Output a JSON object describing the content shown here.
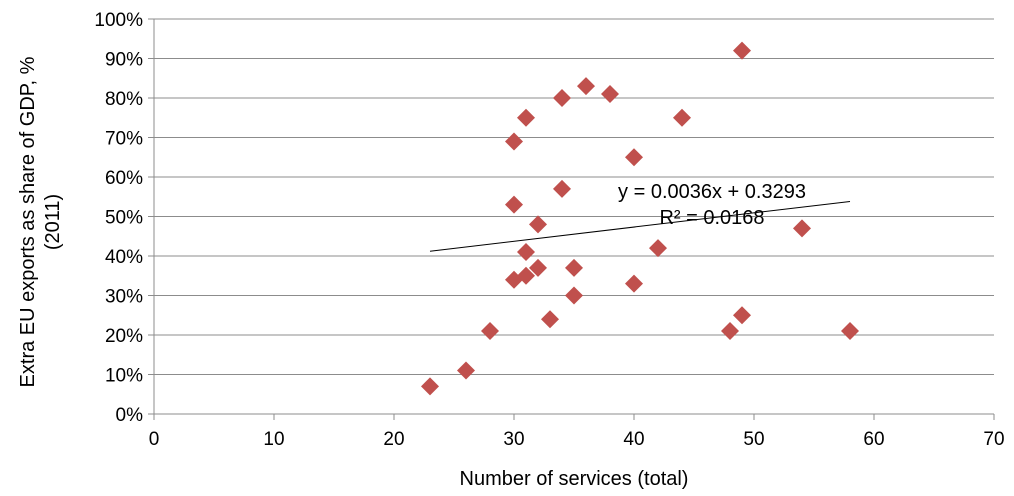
{
  "chart_data": {
    "type": "scatter",
    "xlabel": "Number  of services (total)",
    "ylabel_lines": [
      "Extra EU exports as share of GDP, %",
      "(2011)"
    ],
    "xlim": [
      0,
      70
    ],
    "ylim": [
      0,
      1
    ],
    "x_ticks": [
      0,
      10,
      20,
      30,
      40,
      50,
      60,
      70
    ],
    "x_tick_labels": [
      "0",
      "10",
      "20",
      "30",
      "40",
      "50",
      "60",
      "70"
    ],
    "y_ticks": [
      0,
      0.1,
      0.2,
      0.3,
      0.4,
      0.5,
      0.6,
      0.7,
      0.8,
      0.9,
      1.0
    ],
    "y_tick_labels": [
      "0%",
      "10%",
      "20%",
      "30%",
      "40%",
      "50%",
      "60%",
      "70%",
      "80%",
      "90%",
      "100%"
    ],
    "grid": "horizontal",
    "marker": "diamond",
    "marker_color": "#C0504D",
    "trendline_color": "#000000",
    "points": [
      {
        "x": 23,
        "y": 0.07
      },
      {
        "x": 26,
        "y": 0.11
      },
      {
        "x": 28,
        "y": 0.21
      },
      {
        "x": 30,
        "y": 0.34
      },
      {
        "x": 30,
        "y": 0.53
      },
      {
        "x": 30,
        "y": 0.69
      },
      {
        "x": 31,
        "y": 0.35
      },
      {
        "x": 31,
        "y": 0.41
      },
      {
        "x": 31,
        "y": 0.75
      },
      {
        "x": 32,
        "y": 0.37
      },
      {
        "x": 32,
        "y": 0.48
      },
      {
        "x": 33,
        "y": 0.24
      },
      {
        "x": 34,
        "y": 0.57
      },
      {
        "x": 34,
        "y": 0.8
      },
      {
        "x": 35,
        "y": 0.3
      },
      {
        "x": 35,
        "y": 0.37
      },
      {
        "x": 36,
        "y": 0.83
      },
      {
        "x": 38,
        "y": 0.81
      },
      {
        "x": 40,
        "y": 0.33
      },
      {
        "x": 40,
        "y": 0.65
      },
      {
        "x": 42,
        "y": 0.42
      },
      {
        "x": 44,
        "y": 0.75
      },
      {
        "x": 48,
        "y": 0.21
      },
      {
        "x": 49,
        "y": 0.25
      },
      {
        "x": 49,
        "y": 0.92
      },
      {
        "x": 54,
        "y": 0.47
      },
      {
        "x": 58,
        "y": 0.21
      }
    ],
    "trendline": {
      "slope": 0.0036,
      "intercept": 0.3293,
      "x_range": [
        23,
        58
      ],
      "equation": "y = 0.0036x + 0.3293",
      "r_squared": "R² = 0.0168"
    }
  }
}
